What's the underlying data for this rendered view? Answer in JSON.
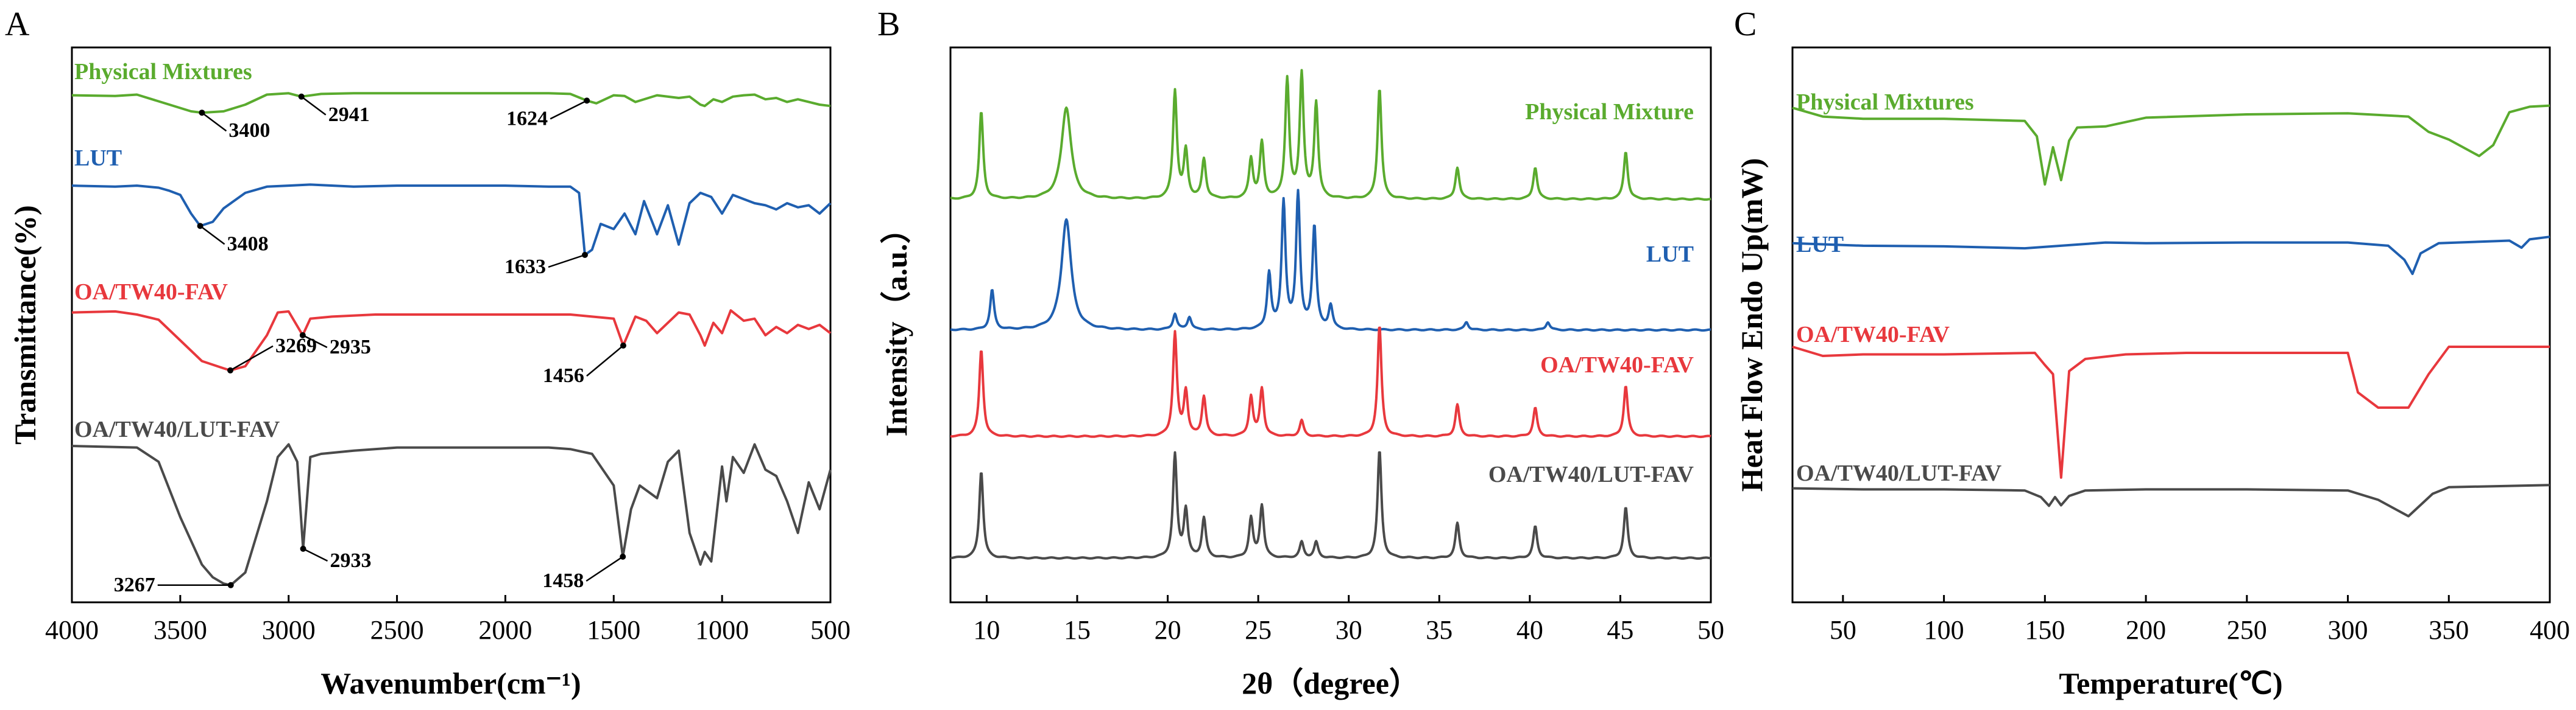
{
  "chart_data": [
    {
      "panel": "A",
      "type": "line",
      "title": "",
      "xlabel": "Wavenumber(cm⁻¹)",
      "ylabel": "Transmittance(%)",
      "xlim": [
        4000,
        500
      ],
      "x_ticks": [
        4000,
        3500,
        3000,
        2500,
        2000,
        1500,
        1000,
        500
      ],
      "series": [
        {
          "name": "Physical Mixtures",
          "color": "#5aab2e",
          "x": [
            4000,
            3800,
            3700,
            3550,
            3450,
            3400,
            3300,
            3200,
            3100,
            3000,
            2941,
            2850,
            2700,
            2400,
            2000,
            1800,
            1700,
            1624,
            1580,
            1500,
            1450,
            1400,
            1300,
            1200,
            1150,
            1100,
            1080,
            1040,
            1000,
            950,
            900,
            850,
            800,
            750,
            700,
            650,
            600,
            550,
            500
          ],
          "y": [
            94,
            93,
            95,
            80,
            70,
            68,
            70,
            80,
            95,
            97,
            92,
            96,
            97,
            97,
            97,
            97,
            96,
            86,
            82,
            94,
            93,
            84,
            94,
            90,
            92,
            80,
            78,
            88,
            84,
            92,
            94,
            95,
            88,
            90,
            84,
            88,
            84,
            80,
            78
          ]
        },
        {
          "name": "LUT",
          "color": "#1f5fb0",
          "x": [
            4000,
            3800,
            3700,
            3600,
            3550,
            3500,
            3450,
            3408,
            3350,
            3300,
            3200,
            3100,
            3000,
            2900,
            2700,
            2500,
            2300,
            2000,
            1800,
            1700,
            1660,
            1633,
            1600,
            1560,
            1500,
            1450,
            1400,
            1360,
            1300,
            1250,
            1200,
            1150,
            1100,
            1050,
            1000,
            950,
            900,
            850,
            800,
            750,
            700,
            650,
            600,
            550,
            500
          ],
          "y": [
            97,
            96,
            97,
            95,
            92,
            88,
            70,
            58,
            62,
            75,
            90,
            96,
            97,
            98,
            96,
            97,
            97,
            97,
            96,
            96,
            90,
            30,
            35,
            60,
            55,
            70,
            50,
            82,
            50,
            78,
            40,
            80,
            90,
            86,
            70,
            88,
            84,
            80,
            78,
            74,
            80,
            76,
            78,
            70,
            80
          ]
        },
        {
          "name": "OA/TW40-FAV",
          "color": "#e8383d",
          "x": [
            4000,
            3800,
            3700,
            3600,
            3500,
            3400,
            3300,
            3269,
            3200,
            3100,
            3050,
            3000,
            2935,
            2900,
            2800,
            2600,
            2400,
            2000,
            1800,
            1700,
            1600,
            1500,
            1456,
            1400,
            1350,
            1300,
            1250,
            1200,
            1150,
            1100,
            1080,
            1040,
            1000,
            960,
            900,
            850,
            800,
            750,
            700,
            650,
            600,
            550,
            500
          ],
          "y": [
            92,
            93,
            90,
            85,
            65,
            45,
            38,
            36,
            40,
            70,
            92,
            93,
            70,
            86,
            88,
            90,
            90,
            90,
            90,
            90,
            88,
            86,
            60,
            88,
            84,
            72,
            82,
            92,
            90,
            70,
            60,
            82,
            72,
            94,
            84,
            86,
            70,
            78,
            72,
            80,
            76,
            80,
            72
          ]
        },
        {
          "name": "OA/TW40/LUT-FAV",
          "color": "#4a4a4a",
          "x": [
            4000,
            3700,
            3600,
            3500,
            3400,
            3350,
            3300,
            3267,
            3200,
            3100,
            3050,
            3000,
            2960,
            2933,
            2900,
            2850,
            2700,
            2500,
            2300,
            2000,
            1800,
            1700,
            1600,
            1500,
            1458,
            1420,
            1380,
            1300,
            1250,
            1200,
            1150,
            1100,
            1080,
            1050,
            1000,
            980,
            950,
            900,
            850,
            800,
            750,
            700,
            650,
            600,
            550,
            500
          ],
          "y": [
            95,
            94,
            85,
            50,
            20,
            12,
            8,
            7,
            15,
            60,
            88,
            96,
            85,
            30,
            88,
            90,
            92,
            94,
            94,
            94,
            94,
            93,
            90,
            70,
            25,
            55,
            70,
            62,
            85,
            92,
            40,
            20,
            28,
            22,
            82,
            60,
            88,
            78,
            96,
            80,
            76,
            60,
            40,
            72,
            55,
            80
          ]
        }
      ],
      "annotations": [
        {
          "series": 0,
          "label": "3400",
          "x": 3400
        },
        {
          "series": 0,
          "label": "2941",
          "x": 2941
        },
        {
          "series": 0,
          "label": "1624",
          "x": 1624
        },
        {
          "series": 1,
          "label": "3408",
          "x": 3408
        },
        {
          "series": 1,
          "label": "1633",
          "x": 1633
        },
        {
          "series": 2,
          "label": "2935",
          "x": 2935
        },
        {
          "series": 2,
          "label": "3269",
          "x": 3269
        },
        {
          "series": 2,
          "label": "1456",
          "x": 1456
        },
        {
          "series": 3,
          "label": "2933",
          "x": 2933
        },
        {
          "series": 3,
          "label": "3267",
          "x": 3267
        },
        {
          "series": 3,
          "label": "1458",
          "x": 1458
        }
      ]
    },
    {
      "panel": "B",
      "type": "line",
      "title": "",
      "xlabel": "2θ（degree）",
      "ylabel": "Intensity（a.u.）",
      "xlim": [
        8,
        50
      ],
      "x_ticks": [
        10,
        15,
        20,
        25,
        30,
        35,
        40,
        45,
        50
      ],
      "baseline": 1,
      "series": [
        {
          "name": "Physical Mixture",
          "color": "#5aab2e",
          "peaks": [
            [
              9.7,
              55
            ],
            [
              14.4,
              58
            ],
            [
              20.4,
              68
            ],
            [
              21.0,
              30
            ],
            [
              22.0,
              25
            ],
            [
              24.6,
              25
            ],
            [
              25.2,
              35
            ],
            [
              26.6,
              75
            ],
            [
              27.4,
              78
            ],
            [
              28.2,
              60
            ],
            [
              31.7,
              70
            ],
            [
              36.0,
              20
            ],
            [
              40.3,
              20
            ],
            [
              45.3,
              30
            ]
          ]
        },
        {
          "name": "LUT",
          "color": "#1f5fb0",
          "peaks": [
            [
              10.3,
              25
            ],
            [
              14.4,
              70
            ],
            [
              20.4,
              10
            ],
            [
              21.2,
              8
            ],
            [
              25.6,
              35
            ],
            [
              26.4,
              80
            ],
            [
              27.2,
              85
            ],
            [
              28.1,
              65
            ],
            [
              29.0,
              15
            ],
            [
              36.5,
              5
            ],
            [
              41.0,
              5
            ]
          ]
        },
        {
          "name": "OA/TW40-FAV",
          "color": "#e8383d",
          "peaks": [
            [
              9.7,
              55
            ],
            [
              20.4,
              65
            ],
            [
              21.0,
              28
            ],
            [
              22.0,
              25
            ],
            [
              24.6,
              25
            ],
            [
              25.2,
              30
            ],
            [
              27.4,
              10
            ],
            [
              31.7,
              70
            ],
            [
              36.0,
              20
            ],
            [
              40.3,
              18
            ],
            [
              45.3,
              32
            ]
          ]
        },
        {
          "name": "OA/TW40/LUT-FAV",
          "color": "#4a4a4a",
          "peaks": [
            [
              9.7,
              55
            ],
            [
              20.4,
              65
            ],
            [
              21.0,
              30
            ],
            [
              22.0,
              25
            ],
            [
              24.6,
              25
            ],
            [
              25.2,
              33
            ],
            [
              27.4,
              10
            ],
            [
              28.2,
              10
            ],
            [
              31.7,
              68
            ],
            [
              36.0,
              22
            ],
            [
              40.3,
              20
            ],
            [
              45.3,
              32
            ]
          ]
        }
      ]
    },
    {
      "panel": "C",
      "type": "line",
      "title": "",
      "xlabel": "Temperature(℃)",
      "ylabel": "Heat Flow Endo Up(mW)",
      "xlim": [
        25,
        400
      ],
      "x_ticks": [
        50,
        100,
        150,
        200,
        250,
        300,
        350,
        400
      ],
      "series": [
        {
          "name": "Physical Mixtures",
          "color": "#5aab2e",
          "x": [
            25,
            40,
            60,
            100,
            140,
            146,
            150,
            154,
            158,
            162,
            166,
            180,
            200,
            250,
            300,
            330,
            340,
            350,
            365,
            372,
            380,
            390,
            400
          ],
          "y": [
            96,
            88,
            86,
            86,
            84,
            70,
            26,
            60,
            30,
            66,
            78,
            79,
            87,
            90,
            91,
            88,
            74,
            67,
            52,
            62,
            92,
            97,
            98
          ]
        },
        {
          "name": "LUT",
          "color": "#1f5fb0",
          "x": [
            25,
            60,
            100,
            140,
            180,
            200,
            250,
            300,
            320,
            328,
            332,
            336,
            345,
            380,
            386,
            390,
            400
          ],
          "y": [
            86,
            82,
            81,
            78,
            87,
            86,
            87,
            87,
            82,
            60,
            38,
            70,
            86,
            90,
            79,
            92,
            96
          ]
        },
        {
          "name": "OA/TW40-FAV",
          "color": "#e8383d",
          "x": [
            25,
            40,
            60,
            100,
            145,
            150,
            154,
            158,
            162,
            170,
            190,
            220,
            300,
            305,
            315,
            330,
            340,
            350,
            400
          ],
          "y": [
            88,
            82,
            83,
            83,
            84,
            76,
            70,
            2,
            72,
            80,
            83,
            84,
            84,
            58,
            48,
            48,
            70,
            88,
            88
          ]
        },
        {
          "name": "OA/TW40/LUT-FAV",
          "color": "#4a4a4a",
          "x": [
            25,
            60,
            100,
            140,
            148,
            152,
            155,
            158,
            162,
            170,
            200,
            250,
            300,
            315,
            330,
            342,
            350,
            400
          ],
          "y": [
            86,
            84,
            84,
            82,
            70,
            54,
            70,
            55,
            72,
            82,
            84,
            84,
            82,
            65,
            35,
            76,
            88,
            92
          ]
        }
      ]
    }
  ],
  "panels": {
    "A": {
      "letter": "A",
      "series_labels": [
        "Physical Mixtures",
        "LUT",
        "OA/TW40-FAV",
        "OA/TW40/LUT-FAV"
      ],
      "ticks": [
        "4000",
        "3500",
        "3000",
        "2500",
        "2000",
        "1500",
        "1000",
        "500"
      ],
      "xlabel": "Wavenumber(cm⁻¹)",
      "ylabel": "Transmittance(%)"
    },
    "B": {
      "letter": "B",
      "series_labels": [
        "Physical Mixture",
        "LUT",
        "OA/TW40-FAV",
        "OA/TW40/LUT-FAV"
      ],
      "ticks": [
        "10",
        "15",
        "20",
        "25",
        "30",
        "35",
        "40",
        "45",
        "50"
      ],
      "xlabel": "2θ（degree）",
      "ylabel": "Intensity（a.u.）"
    },
    "C": {
      "letter": "C",
      "series_labels": [
        "Physical Mixtures",
        "LUT",
        "OA/TW40-FAV",
        "OA/TW40/LUT-FAV"
      ],
      "ticks": [
        "50",
        "100",
        "150",
        "200",
        "250",
        "300",
        "350",
        "400"
      ],
      "xlabel": "Temperature(℃)",
      "ylabel": "Heat Flow Endo Up(mW)"
    }
  }
}
